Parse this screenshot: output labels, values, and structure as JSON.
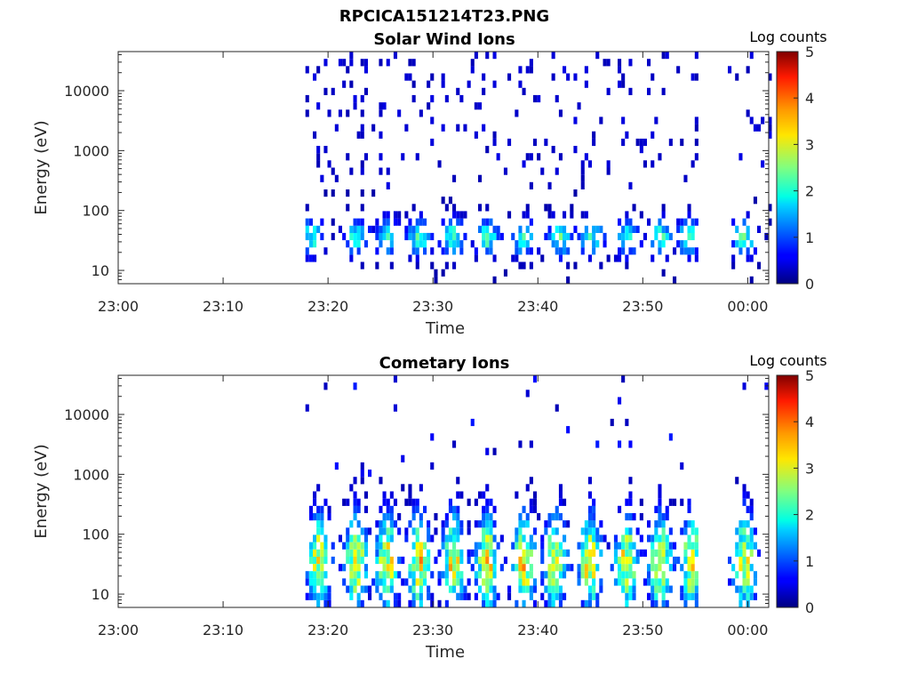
{
  "figure_title": "RPCICA151214T23.PNG",
  "chart_data": [
    {
      "type": "heatmap",
      "title": "Solar Wind Ions",
      "xlabel": "Time",
      "ylabel": "Energy (eV)",
      "x_ticks": [
        "23:00",
        "23:10",
        "23:20",
        "23:30",
        "23:40",
        "23:50",
        "00:00"
      ],
      "x_range_minutes": [
        0,
        62
      ],
      "y_scale": "log",
      "y_ticks": [
        10,
        100,
        1000,
        10000
      ],
      "y_tick_labels": [
        "10",
        "100",
        "1000",
        "10000"
      ],
      "ylim": [
        6,
        45000
      ],
      "colorbar": {
        "label": "Log counts",
        "min": 0,
        "max": 5,
        "ticks": [
          "0",
          "1",
          "2",
          "3",
          "4",
          "5"
        ],
        "colormap": "jet"
      },
      "data_gaps_minutes": [
        [
          0,
          17.5
        ],
        [
          55.2,
          58
        ]
      ],
      "bursts_minute": [
        18.2,
        22.6,
        25.5,
        28.5,
        31.8,
        35.0,
        38.5,
        42.0,
        45.0,
        48.3,
        51.5,
        54.2,
        59.5
      ],
      "core_energy_eV": [
        28,
        45
      ],
      "peak_log_counts": 2.2
    },
    {
      "type": "heatmap",
      "title": "Cometary Ions",
      "xlabel": "Time",
      "ylabel": "Energy (eV)",
      "x_ticks": [
        "23:00",
        "23:10",
        "23:20",
        "23:30",
        "23:40",
        "23:50",
        "00:00"
      ],
      "x_range_minutes": [
        0,
        62
      ],
      "y_scale": "log",
      "y_ticks": [
        10,
        100,
        1000,
        10000
      ],
      "y_tick_labels": [
        "10",
        "100",
        "1000",
        "10000"
      ],
      "ylim": [
        6,
        45000
      ],
      "colorbar": {
        "label": "Log counts",
        "min": 0,
        "max": 5,
        "ticks": [
          "0",
          "1",
          "2",
          "3",
          "4",
          "5"
        ],
        "colormap": "jet"
      },
      "data_gaps_minutes": [
        [
          0,
          17.5
        ],
        [
          55.2,
          58
        ]
      ],
      "bursts_minute": [
        19.0,
        22.5,
        25.5,
        28.5,
        31.8,
        35.0,
        38.5,
        41.5,
        44.8,
        48.3,
        51.5,
        54.5,
        59.5
      ],
      "core_energy_eV": [
        25,
        45
      ],
      "peak_log_counts": 3.4
    }
  ]
}
